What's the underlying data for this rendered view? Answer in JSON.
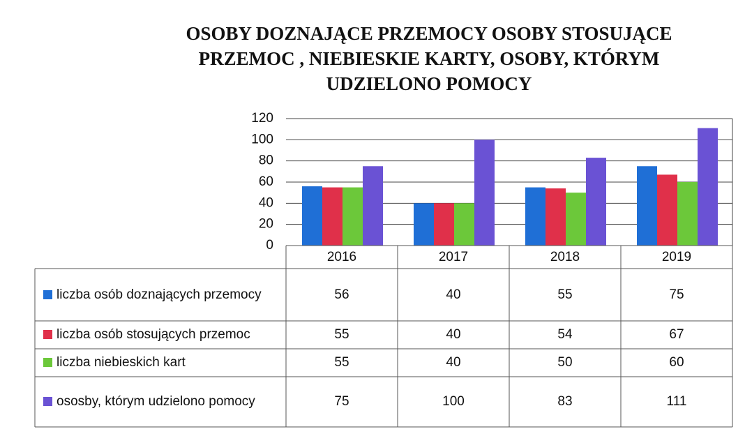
{
  "chart_data": {
    "type": "bar",
    "title": "OSOBY DOZNAJĄCE PRZEMOCY OSOBY STOSUJĄCE PRZEMOC , NIEBIESKIE KARTY, OSOBY, KTÓRYM UDZIELONO POMOCY",
    "categories": [
      "2016",
      "2017",
      "2018",
      "2019"
    ],
    "series": [
      {
        "name": "liczba osób doznających przemocy",
        "color": "#1f6fd6",
        "values": [
          56,
          40,
          55,
          75
        ]
      },
      {
        "name": "liczba osób stosujących przemoc",
        "color": "#e0304a",
        "values": [
          55,
          40,
          54,
          67
        ]
      },
      {
        "name": "liczba niebieskich kart",
        "color": "#6cc83a",
        "values": [
          55,
          40,
          50,
          60
        ]
      },
      {
        "name": "ososby, którym udzielono pomocy",
        "color": "#6a52d4",
        "values": [
          75,
          100,
          83,
          111
        ]
      }
    ],
    "ylim": [
      0,
      120
    ],
    "yticks": [
      0,
      20,
      40,
      60,
      80,
      100,
      120
    ],
    "grid": true
  }
}
